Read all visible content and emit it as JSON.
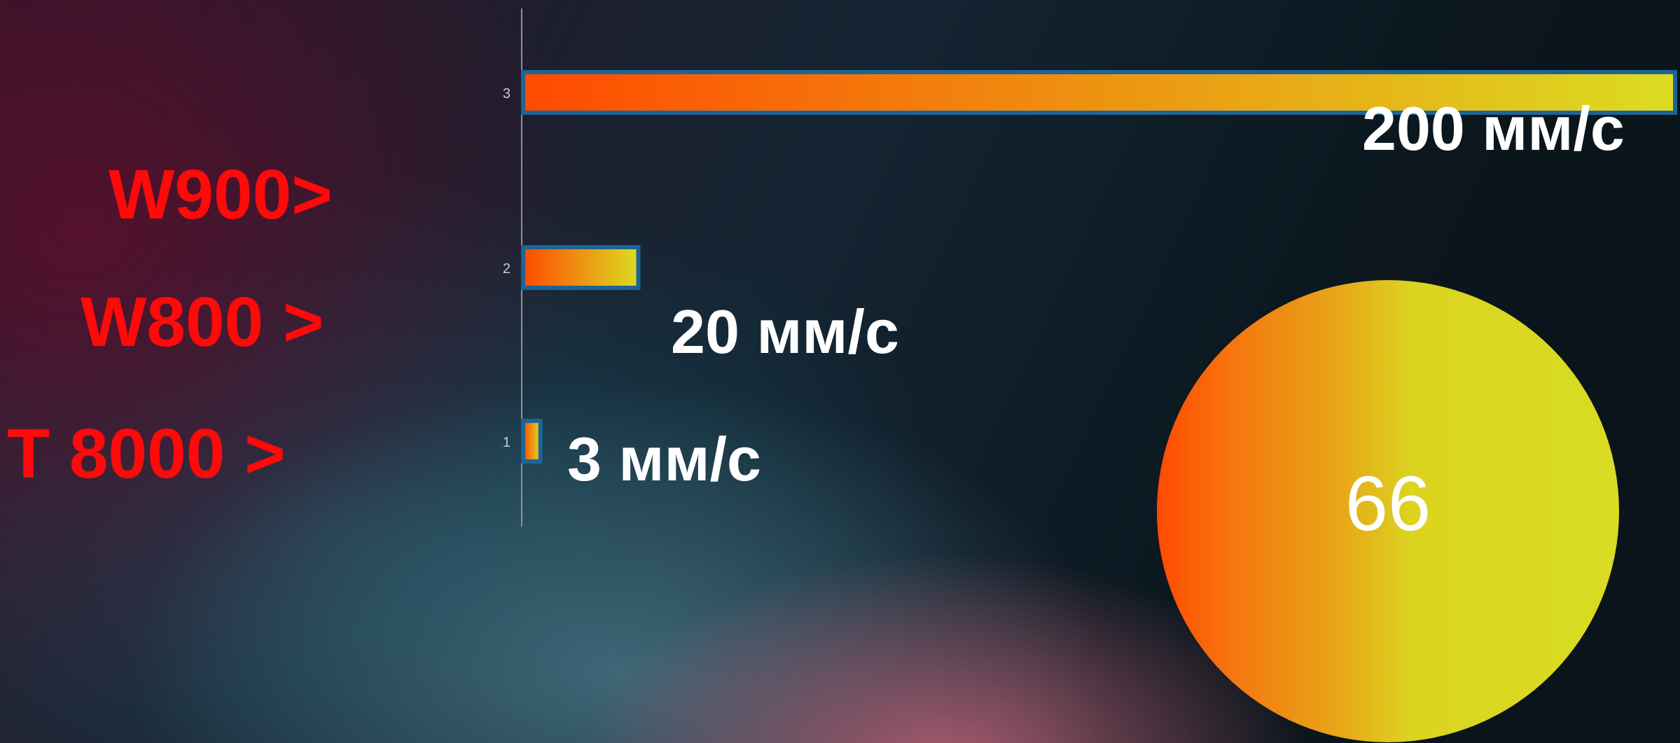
{
  "chart_data": {
    "type": "bar",
    "orientation": "horizontal",
    "categories": [
      "1",
      "2",
      "3"
    ],
    "values": [
      3,
      20,
      200
    ],
    "value_labels": [
      "3 мм/с",
      "20 мм/с",
      "200 мм/с"
    ],
    "xlim": [
      0,
      200
    ],
    "grid": false,
    "title": "",
    "xlabel": "",
    "ylabel": ""
  },
  "product_labels": [
    "W900>",
    "W800 >",
    "T 8000 >"
  ],
  "badge": {
    "value": "66"
  },
  "colors": {
    "bar_start": "#ff4a00",
    "bar_end": "#dcdc22",
    "bar_border": "#1e6496",
    "label_red": "#ff0a0a"
  }
}
